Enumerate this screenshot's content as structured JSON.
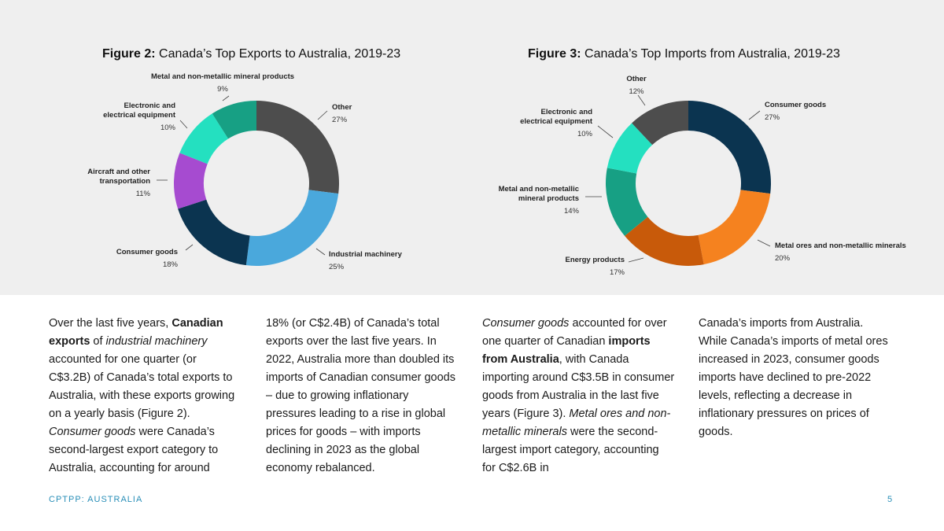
{
  "chart_data": [
    {
      "type": "pie",
      "donut": true,
      "title_bold": "Figure 2:",
      "title_rest": " Canada’s Top Exports to Australia, 2019-23",
      "slices": [
        {
          "label": [
            "Other"
          ],
          "value": 27,
          "display": "27%",
          "color": "#4d4d4d"
        },
        {
          "label": [
            "Industrial machinery"
          ],
          "value": 25,
          "display": "25%",
          "color": "#4aa8dc"
        },
        {
          "label": [
            "Consumer goods"
          ],
          "value": 18,
          "display": "18%",
          "color": "#0b3450"
        },
        {
          "label": [
            "Aircraft and other",
            "transportation"
          ],
          "value": 11,
          "display": "11%",
          "color": "#a64bd0"
        },
        {
          "label": [
            "Electronic and",
            "electrical equipment"
          ],
          "value": 10,
          "display": "10%",
          "color": "#24e0c0"
        },
        {
          "label": [
            "Metal and non-metallic mineral products"
          ],
          "value": 9,
          "display": "9%",
          "color": "#17a084"
        }
      ]
    },
    {
      "type": "pie",
      "donut": true,
      "title_bold": "Figure 3:",
      "title_rest": " Canada’s Top Imports from Australia, 2019-23",
      "slices": [
        {
          "label": [
            "Consumer goods"
          ],
          "value": 27,
          "display": "27%",
          "color": "#0b3450"
        },
        {
          "label": [
            "Metal ores and non-metallic minerals"
          ],
          "value": 20,
          "display": "20%",
          "color": "#f5821f"
        },
        {
          "label": [
            "Energy products"
          ],
          "value": 17,
          "display": "17%",
          "color": "#c85a0a"
        },
        {
          "label": [
            "Metal and non-metallic",
            "mineral products"
          ],
          "value": 14,
          "display": "14%",
          "color": "#17a084"
        },
        {
          "label": [
            "Electronic and",
            "electrical equipment"
          ],
          "value": 10,
          "display": "10%",
          "color": "#24e0c0"
        },
        {
          "label": [
            "Other"
          ],
          "value": 12,
          "display": "12%",
          "color": "#4d4d4d"
        }
      ]
    }
  ],
  "body_text": [
    [
      {
        "t": "Over the last five years, "
      },
      {
        "t": "Canadian exports",
        "s": "b"
      },
      {
        "t": " of "
      },
      {
        "t": "industrial machinery",
        "s": "i"
      },
      {
        "t": " accounted for one quarter (or C$3.2B) of Canada’s total exports to Australia, with these exports growing on a yearly basis (Figure 2). "
      },
      {
        "t": "Consumer goods",
        "s": "i"
      },
      {
        "t": " were Canada’s second-largest export category to Australia, accounting for around"
      }
    ],
    [
      {
        "t": "18% (or C$2.4B) of Canada’s total exports over the last five years. In 2022, Australia more than doubled its imports of Canadian consumer goods – due to growing inflationary pressures leading to a rise in global prices for goods – with imports declining in 2023 as the global economy rebalanced."
      }
    ],
    [
      {
        "t": "Consumer goods",
        "s": "i"
      },
      {
        "t": " accounted for over one quarter of Canadian "
      },
      {
        "t": "imports from Australia",
        "s": "b"
      },
      {
        "t": ", with Canada importing around C$3.5B in consumer goods from Australia in the last five years (Figure 3). "
      },
      {
        "t": "Metal ores and non-metallic minerals",
        "s": "i"
      },
      {
        "t": " were the second-largest import category, accounting for C$2.6B in"
      }
    ],
    [
      {
        "t": "Canada’s imports from Australia. While Canada’s imports of metal ores increased in 2023, consumer goods imports have declined to pre-2022 levels, reflecting a decrease in inflationary pressures on prices of goods."
      }
    ]
  ],
  "footer": {
    "left": "CPTPP: AUSTRALIA",
    "page": "5"
  }
}
